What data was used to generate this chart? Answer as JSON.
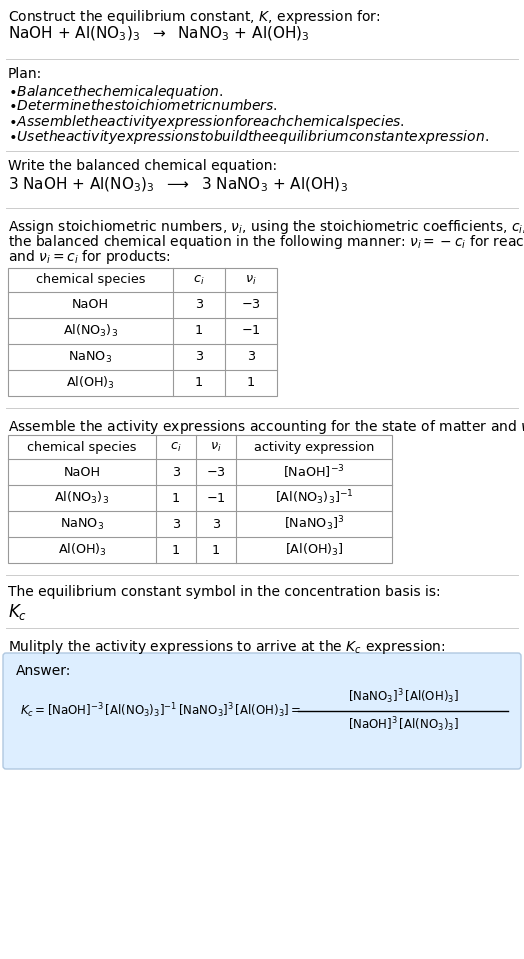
{
  "bg_color": "#ffffff",
  "answer_bg_color": "#ddeeff",
  "answer_border_color": "#b0c8e0",
  "header_line1": "Construct the equilibrium constant, $K$, expression for:",
  "header_line2": "NaOH + Al(NO$_3$)$_3$  $\\rightarrow$  NaNO$_3$ + Al(OH)$_3$",
  "plan_title": "Plan:",
  "plan_bullets": [
    "\\bullet  Balance the chemical equation.",
    "\\bullet  Determine the stoichiometric numbers.",
    "\\bullet  Assemble the activity expression for each chemical species.",
    "\\bullet  Use the activity expressions to build the equilibrium constant expression."
  ],
  "balanced_label": "Write the balanced chemical equation:",
  "balanced_eq": "3 NaOH + Al(NO$_3$)$_3$  $\\longrightarrow$  3 NaNO$_3$ + Al(OH)$_3$",
  "assign_text": [
    "Assign stoichiometric numbers, $\\nu_i$, using the stoichiometric coefficients, $c_i$, from",
    "the balanced chemical equation in the following manner: $\\nu_i = -c_i$ for reactants",
    "and $\\nu_i = c_i$ for products:"
  ],
  "table1_headers": [
    "chemical species",
    "$c_i$",
    "$\\nu_i$"
  ],
  "table1_rows": [
    [
      "NaOH",
      "3",
      "$-3$"
    ],
    [
      "Al(NO$_3$)$_3$",
      "1",
      "$-1$"
    ],
    [
      "NaNO$_3$",
      "3",
      "3"
    ],
    [
      "Al(OH)$_3$",
      "1",
      "1"
    ]
  ],
  "assemble_text": "Assemble the activity expressions accounting for the state of matter and $\\nu_i$:",
  "table2_headers": [
    "chemical species",
    "$c_i$",
    "$\\nu_i$",
    "activity expression"
  ],
  "table2_rows": [
    [
      "NaOH",
      "3",
      "$-3$",
      "[NaOH]$^{-3}$"
    ],
    [
      "Al(NO$_3$)$_3$",
      "1",
      "$-1$",
      "[Al(NO$_3$)$_3$]$^{-1}$"
    ],
    [
      "NaNO$_3$",
      "3",
      "3",
      "[NaNO$_3$]$^3$"
    ],
    [
      "Al(OH)$_3$",
      "1",
      "1",
      "[Al(OH)$_3$]"
    ]
  ],
  "kc_label": "The equilibrium constant symbol in the concentration basis is:",
  "kc_symbol": "$K_c$",
  "multiply_text": "Mulitply the activity expressions to arrive at the $K_c$ expression:",
  "answer_label": "Answer:",
  "eq_left": "$K_c = [\\mathrm{NaOH}]^{-3}\\,[\\mathrm{Al(NO_3)_3}]^{-1}\\,[\\mathrm{NaNO_3}]^3\\,[\\mathrm{Al(OH)_3}] = $",
  "frac_num": "$[\\mathrm{NaNO_3}]^3\\,[\\mathrm{Al(OH)_3}]$",
  "frac_den": "$[\\mathrm{NaOH}]^3\\,[\\mathrm{Al(NO_3)_3}]$",
  "sep_color": "#cccccc",
  "table_border_color": "#999999"
}
